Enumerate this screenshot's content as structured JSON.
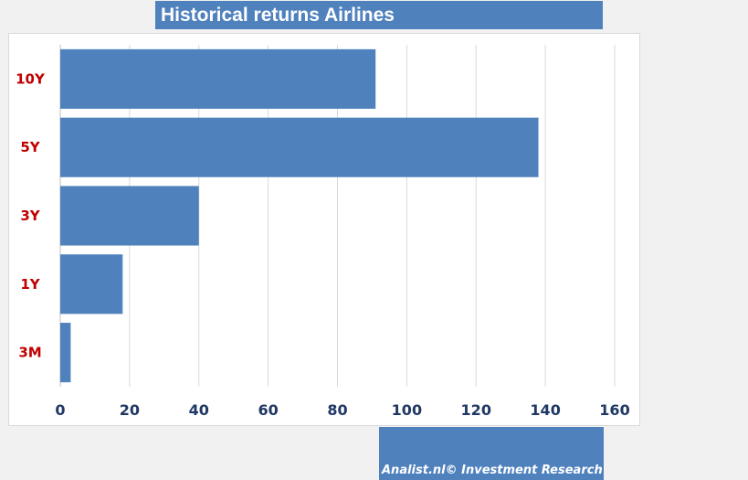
{
  "chart_data": {
    "type": "bar",
    "orientation": "horizontal",
    "title": "Historical returns Airlines",
    "categories": [
      "10Y",
      "5Y",
      "3Y",
      "1Y",
      "3M"
    ],
    "values": [
      91,
      138,
      40,
      18,
      3
    ],
    "xlim": [
      0,
      160
    ],
    "xticks": [
      0,
      20,
      40,
      60,
      80,
      100,
      120,
      140,
      160
    ],
    "grid": "vertical",
    "legend": "none",
    "bar_color": "#4f81bd",
    "category_label_color": "#c00000",
    "tick_label_color": "#1f3864"
  },
  "footer": {
    "source": "Analist.nl© Investment Research"
  }
}
